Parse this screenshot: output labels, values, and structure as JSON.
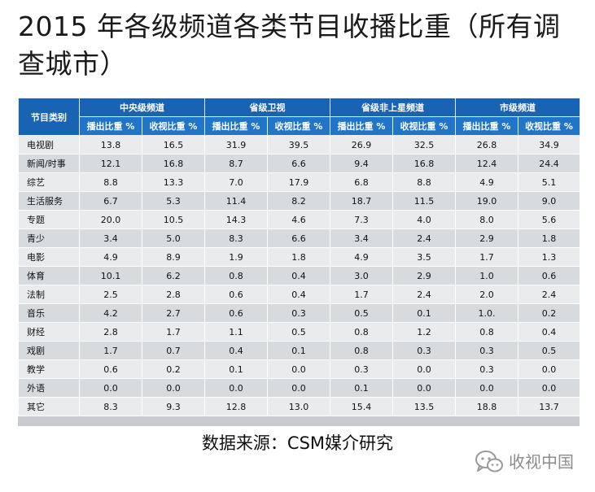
{
  "title": "2015 年各级频道各类节目收播比重（所有调查城市）",
  "table": {
    "row_header": "节目类别",
    "groups": [
      "中央级频道",
      "省级卫视",
      "省级非上星频道",
      "市级频道"
    ],
    "sub_headers": [
      "播出比重 %",
      "收视比重 %"
    ],
    "rows": [
      {
        "category": "电视剧",
        "values": [
          "13.8",
          "16.5",
          "31.9",
          "39.5",
          "26.9",
          "32.5",
          "26.8",
          "34.9"
        ]
      },
      {
        "category": "新闻/时事",
        "values": [
          "12.1",
          "16.8",
          "8.7",
          "6.6",
          "9.4",
          "16.8",
          "12.4",
          "24.4"
        ]
      },
      {
        "category": "综艺",
        "values": [
          "8.8",
          "13.3",
          "7.0",
          "17.9",
          "6.8",
          "8.8",
          "4.9",
          "5.1"
        ]
      },
      {
        "category": "生活服务",
        "values": [
          "6.7",
          "5.3",
          "11.4",
          "8.2",
          "18.7",
          "11.5",
          "19.0",
          "9.0"
        ]
      },
      {
        "category": "专题",
        "values": [
          "20.0",
          "10.5",
          "14.3",
          "4.6",
          "7.3",
          "4.0",
          "8.0",
          "5.6"
        ]
      },
      {
        "category": "青少",
        "values": [
          "3.4",
          "5.0",
          "8.3",
          "6.6",
          "3.4",
          "2.4",
          "2.9",
          "1.8"
        ]
      },
      {
        "category": "电影",
        "values": [
          "4.9",
          "8.9",
          "1.9",
          "1.8",
          "4.9",
          "3.5",
          "1.7",
          "1.3"
        ]
      },
      {
        "category": "体育",
        "values": [
          "10.1",
          "6.2",
          "0.8",
          "0.4",
          "3.0",
          "2.9",
          "1.0",
          "0.6"
        ]
      },
      {
        "category": "法制",
        "values": [
          "2.5",
          "2.8",
          "0.6",
          "0.4",
          "1.7",
          "2.4",
          "2.0",
          "2.4"
        ]
      },
      {
        "category": "音乐",
        "values": [
          "4.2",
          "2.7",
          "0.6",
          "0.3",
          "0.5",
          "0.1",
          "1.0.",
          "0.2"
        ]
      },
      {
        "category": "财经",
        "values": [
          "2.8",
          "1.7",
          "1.1",
          "0.5",
          "0.8",
          "1.2",
          "0.8",
          "0.4"
        ]
      },
      {
        "category": "戏剧",
        "values": [
          "1.7",
          "0.7",
          "0.4",
          "0.1",
          "0.8",
          "0.3",
          "0.3",
          "0.5"
        ]
      },
      {
        "category": "教学",
        "values": [
          "0.6",
          "0.2",
          "0.1",
          "0.0",
          "0.3",
          "0.0",
          "0.3",
          "0.0"
        ]
      },
      {
        "category": "外语",
        "values": [
          "0.0",
          "0.0",
          "0.0",
          "0.0",
          "0.1",
          "0.0",
          "0.0",
          "0.0"
        ]
      },
      {
        "category": "其它",
        "values": [
          "8.3",
          "9.3",
          "12.8",
          "13.0",
          "15.4",
          "13.5",
          "18.8",
          "13.7"
        ]
      }
    ]
  },
  "source": "数据来源：CSM媒介研究",
  "watermark": {
    "icon": "wechat-icon",
    "text": "收视中国"
  },
  "colors": {
    "header_blue": "#1863b3",
    "row_light": "#e9ebed",
    "row_dark": "#d7dbde"
  }
}
